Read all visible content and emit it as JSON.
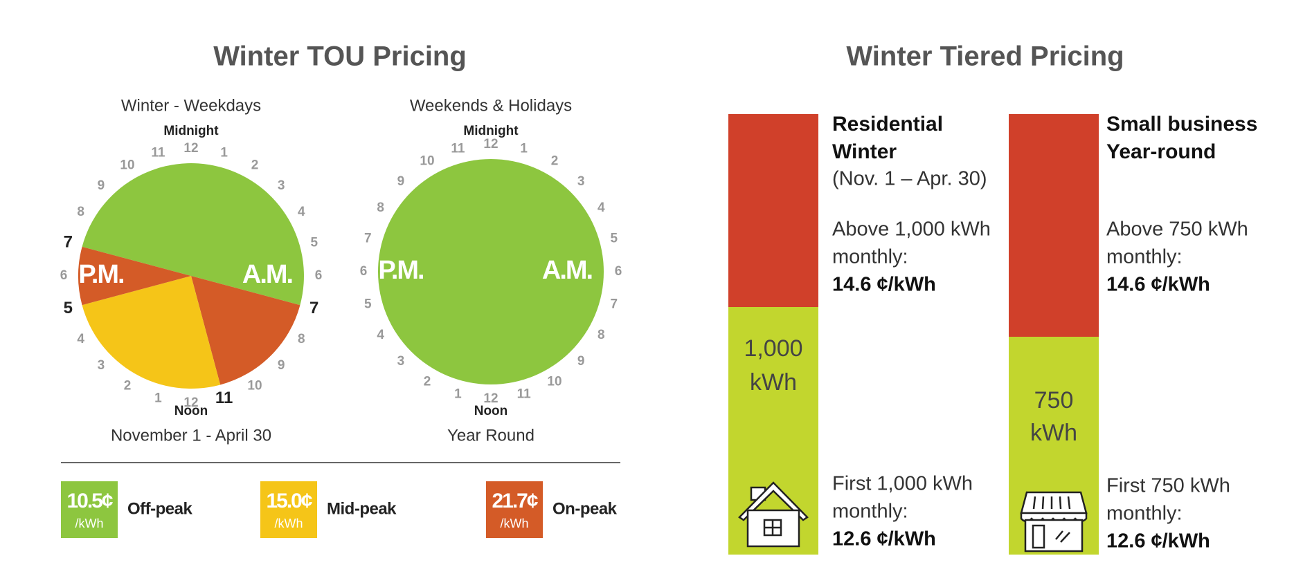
{
  "tou": {
    "title": "Winter TOU Pricing",
    "clocks": [
      {
        "title": "Winter - Weekdays",
        "top_label": "Midnight",
        "bottom_label": "Noon",
        "pm_label": "P.M.",
        "am_label": "A.M.",
        "hours": [
          12,
          1,
          2,
          3,
          4,
          5,
          6,
          7,
          8,
          9,
          10,
          11,
          12,
          1,
          2,
          3,
          4,
          5,
          6,
          7,
          8,
          9,
          10,
          11
        ],
        "segments": [
          {
            "start": 19,
            "end": 7,
            "color": "#8dc63f"
          },
          {
            "start": 7,
            "end": 11,
            "color": "#d45b27"
          },
          {
            "start": 11,
            "end": 17,
            "color": "#f5c518"
          },
          {
            "start": 17,
            "end": 19,
            "color": "#d45b27"
          }
        ],
        "caption": "November 1 - April 30"
      },
      {
        "title": "Weekends & Holidays",
        "top_label": "Midnight",
        "bottom_label": "Noon",
        "pm_label": "P.M.",
        "am_label": "A.M.",
        "hours": [
          12,
          1,
          2,
          3,
          4,
          5,
          6,
          7,
          8,
          9,
          10,
          11,
          12,
          1,
          2,
          3,
          4,
          5,
          6,
          7,
          8,
          9,
          10,
          11
        ],
        "segments": [
          {
            "start": 0,
            "end": 24,
            "color": "#8dc63f"
          }
        ],
        "caption": "Year Round"
      }
    ],
    "legend": [
      {
        "price": "10.5¢",
        "unit": "/kWh",
        "label": "Off-peak",
        "color": "#8dc63f"
      },
      {
        "price": "15.0¢",
        "unit": "/kWh",
        "label": "Mid-peak",
        "color": "#f5c518"
      },
      {
        "price": "21.7¢",
        "unit": "/kWh",
        "label": "On-peak",
        "color": "#d45b27"
      }
    ]
  },
  "tiered": {
    "title": "Winter Tiered Pricing",
    "plans": [
      {
        "name_lines": [
          "Residential",
          "Winter"
        ],
        "dates": "(Nov. 1 – Apr. 30)",
        "upper": {
          "lines": [
            "Above 1,000 kWh",
            "monthly:"
          ],
          "price": "14.6 ¢/kWh"
        },
        "threshold": [
          "1,000",
          "kWh"
        ],
        "lower": {
          "lines": [
            "First 1,000 kWh",
            "monthly:"
          ],
          "price": "12.6 ¢/kWh"
        }
      },
      {
        "name_lines": [
          "Small business",
          "Year-round"
        ],
        "upper": {
          "lines": [
            "Above 750 kWh",
            "monthly:"
          ],
          "price": "14.6 ¢/kWh"
        },
        "threshold": [
          "750",
          "kWh"
        ],
        "lower": {
          "lines": [
            "First 750 kWh",
            "monthly:"
          ],
          "price": "12.6 ¢/kWh"
        }
      }
    ]
  }
}
